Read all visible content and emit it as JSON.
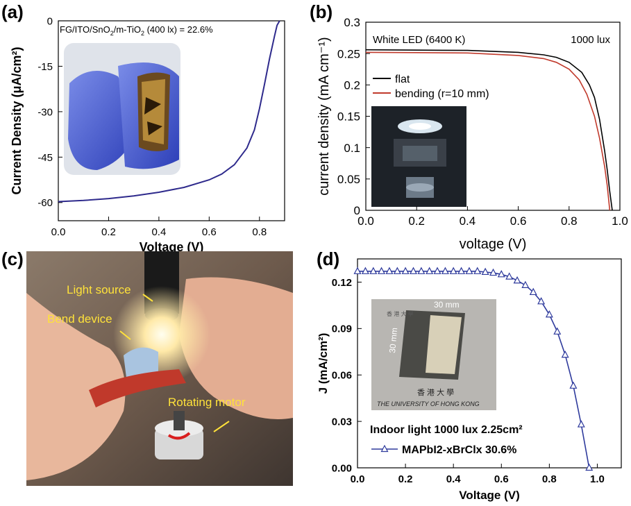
{
  "panels": {
    "a": {
      "label": "(a)",
      "inset_text": "FG/ITO/SnO",
      "inset_sub1": "2",
      "inset_text2": "/m-TiO",
      "inset_sub2": "2",
      "inset_text3": " (400 lx) = 22.6%"
    },
    "b": {
      "label": "(b)"
    },
    "c": {
      "label": "(c)",
      "annotations": {
        "light": "Light source",
        "bend": "Bend device",
        "motor": "Rotating motor"
      }
    },
    "d": {
      "label": "(d)",
      "photo_text": {
        "dim_h": "30 mm",
        "dim_v": "30 mm",
        "chinese": "香 港 大 學",
        "university": "THE UNIVERSITY OF HONG KONG"
      }
    }
  },
  "chart_data": [
    {
      "type": "line",
      "panel": "a",
      "xlabel": "Voltage (V)",
      "ylabel": "Current Density (μA/cm²)",
      "xlim": [
        0,
        0.9
      ],
      "ylim": [
        -66,
        0
      ],
      "x_ticks": [
        "0.0",
        "0.2",
        "0.4",
        "0.6",
        "0.8"
      ],
      "y_ticks": [
        "0",
        "-15",
        "-30",
        "-45",
        "-60"
      ],
      "color": "#2e2a8c",
      "series": [
        {
          "x": [
            0,
            0.1,
            0.2,
            0.3,
            0.4,
            0.5,
            0.6,
            0.65,
            0.7,
            0.75,
            0.78,
            0.8,
            0.82,
            0.84,
            0.86,
            0.87,
            0.88
          ],
          "y": [
            -59.7,
            -59.3,
            -58.7,
            -57.8,
            -56.6,
            -55.0,
            -52.5,
            -50.6,
            -47.5,
            -42.0,
            -36.0,
            -29.0,
            -21.0,
            -12.5,
            -5.0,
            -1.5,
            0
          ]
        }
      ]
    },
    {
      "type": "line",
      "panel": "b",
      "title": "White LED (6400 K)",
      "annotation": "1000 lux",
      "xlabel": "voltage (V)",
      "ylabel": "current density (mA cm⁻¹)",
      "xlim": [
        0,
        1.0
      ],
      "ylim": [
        0,
        0.3
      ],
      "x_ticks": [
        "0.0",
        "0.2",
        "0.4",
        "0.6",
        "0.8",
        "1.0"
      ],
      "y_ticks": [
        "0",
        "0.05",
        "0.1",
        "0.15",
        "0.2",
        "0.25",
        "0.3"
      ],
      "legend": "upper-left",
      "series": [
        {
          "name": "flat",
          "color": "#000000",
          "x": [
            0,
            0.2,
            0.4,
            0.6,
            0.7,
            0.75,
            0.8,
            0.85,
            0.88,
            0.9,
            0.92,
            0.94,
            0.95,
            0.96,
            0.97
          ],
          "y": [
            0.256,
            0.2555,
            0.255,
            0.252,
            0.248,
            0.244,
            0.236,
            0.22,
            0.2,
            0.18,
            0.145,
            0.095,
            0.065,
            0.03,
            0
          ]
        },
        {
          "name": "bending (r=10 mm)",
          "color": "#c0392b",
          "x": [
            0,
            0.2,
            0.4,
            0.6,
            0.7,
            0.75,
            0.8,
            0.84,
            0.87,
            0.9,
            0.92,
            0.94,
            0.95,
            0.96
          ],
          "y": [
            0.252,
            0.2515,
            0.251,
            0.247,
            0.242,
            0.236,
            0.225,
            0.208,
            0.185,
            0.15,
            0.115,
            0.07,
            0.04,
            0
          ]
        }
      ]
    },
    {
      "type": "line",
      "panel": "d",
      "xlabel": "Voltage (V)",
      "ylabel": "J (mA/cm²)",
      "xlim": [
        0,
        1.1
      ],
      "ylim": [
        0,
        0.135
      ],
      "x_ticks": [
        "0.0",
        "0.2",
        "0.4",
        "0.6",
        "0.8",
        "1.0"
      ],
      "y_ticks": [
        "0.00",
        "0.03",
        "0.06",
        "0.09",
        "0.12"
      ],
      "legend_title": "Indoor light 1000 lux 2.25cm²",
      "series": [
        {
          "name": "MAPbI2-xBrClx 30.6%",
          "color": "#2e3a9c",
          "marker": "triangle",
          "x": [
            0,
            0.033,
            0.066,
            0.1,
            0.133,
            0.166,
            0.2,
            0.233,
            0.266,
            0.3,
            0.333,
            0.366,
            0.4,
            0.433,
            0.466,
            0.5,
            0.533,
            0.566,
            0.6,
            0.633,
            0.666,
            0.7,
            0.733,
            0.766,
            0.8,
            0.833,
            0.866,
            0.9,
            0.933,
            0.966
          ],
          "y": [
            0.127,
            0.127,
            0.127,
            0.127,
            0.127,
            0.127,
            0.127,
            0.127,
            0.127,
            0.127,
            0.127,
            0.127,
            0.127,
            0.127,
            0.127,
            0.127,
            0.1265,
            0.126,
            0.125,
            0.1235,
            0.121,
            0.118,
            0.1135,
            0.1075,
            0.099,
            0.088,
            0.073,
            0.053,
            0.028,
            0
          ]
        }
      ]
    }
  ]
}
